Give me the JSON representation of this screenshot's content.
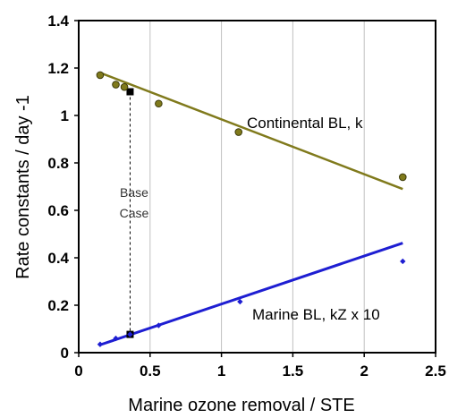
{
  "chart_data": {
    "type": "scatter",
    "title": "",
    "xlabel": "Marine ozone removal / STE",
    "ylabel": "Rate constants / day -1",
    "xlim": [
      0,
      2.5
    ],
    "ylim": [
      0,
      1.4
    ],
    "x_ticks": [
      0,
      0.5,
      1,
      1.5,
      2,
      2.5
    ],
    "x_tick_labels": [
      "0",
      "0.5",
      "1",
      "1.5",
      "2",
      "2.5"
    ],
    "y_ticks": [
      0,
      0.2,
      0.4,
      0.6,
      0.8,
      1,
      1.2,
      1.4
    ],
    "y_tick_labels": [
      "0",
      "0.2",
      "0.4",
      "0.6",
      "0.8",
      "1",
      "1.2",
      "1.4"
    ],
    "grid": "vertical",
    "series": [
      {
        "name": "Continental BL, k",
        "color": "#807a1c",
        "marker": "circle",
        "points": [
          [
            0.15,
            1.17
          ],
          [
            0.26,
            1.13
          ],
          [
            0.32,
            1.12
          ],
          [
            0.56,
            1.05
          ],
          [
            1.12,
            0.93
          ],
          [
            2.27,
            0.74
          ]
        ],
        "fit": [
          [
            0.15,
            1.18
          ],
          [
            2.27,
            0.69
          ]
        ]
      },
      {
        "name": "Marine BL, kZ x 10",
        "color": "#1e1ed2",
        "marker": "diamond",
        "points": [
          [
            0.15,
            0.035
          ],
          [
            0.26,
            0.06
          ],
          [
            0.36,
            0.077
          ],
          [
            0.56,
            0.115
          ],
          [
            1.13,
            0.215
          ],
          [
            2.27,
            0.385
          ]
        ],
        "fit": [
          [
            0.15,
            0.033
          ],
          [
            2.27,
            0.462
          ]
        ]
      }
    ],
    "base_case": {
      "x": 0.36,
      "y_top": 1.1,
      "y_bottom": 0.077,
      "label_line1": "Base",
      "label_line2": "Case"
    },
    "annotations": {
      "continental": "Continental BL, k",
      "marine": "Marine BL, kZ x 10"
    }
  }
}
